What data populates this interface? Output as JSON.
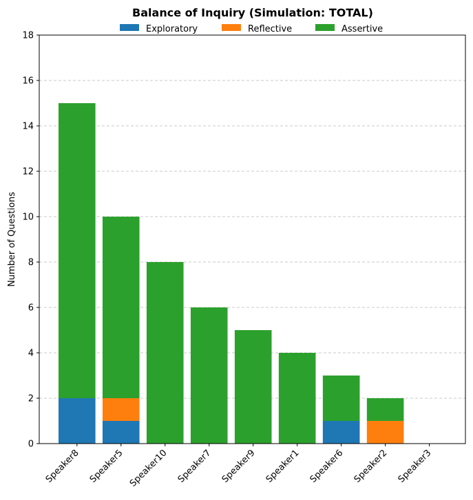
{
  "chart_data": {
    "type": "bar",
    "stacked": true,
    "title": "Balance of Inquiry (Simulation: TOTAL)",
    "xlabel": "",
    "ylabel": "Number of Questions",
    "ylim": [
      0,
      18
    ],
    "yticks": [
      0,
      2,
      4,
      6,
      8,
      10,
      12,
      14,
      16,
      18
    ],
    "grid": "y-dashed",
    "legend_position": "top-center",
    "categories": [
      "Speaker8",
      "Speaker5",
      "Speaker10",
      "Speaker7",
      "Speaker9",
      "Speaker1",
      "Speaker6",
      "Speaker2",
      "Speaker3"
    ],
    "series": [
      {
        "name": "Exploratory",
        "color": "#1f77b4",
        "values": [
          2,
          1,
          0,
          0,
          0,
          0,
          1,
          0,
          0
        ]
      },
      {
        "name": "Reflective",
        "color": "#ff7f0e",
        "values": [
          0,
          1,
          0,
          0,
          0,
          0,
          0,
          1,
          0
        ]
      },
      {
        "name": "Assertive",
        "color": "#2ca02c",
        "values": [
          13,
          8,
          8,
          6,
          5,
          4,
          2,
          1,
          0
        ]
      }
    ]
  }
}
